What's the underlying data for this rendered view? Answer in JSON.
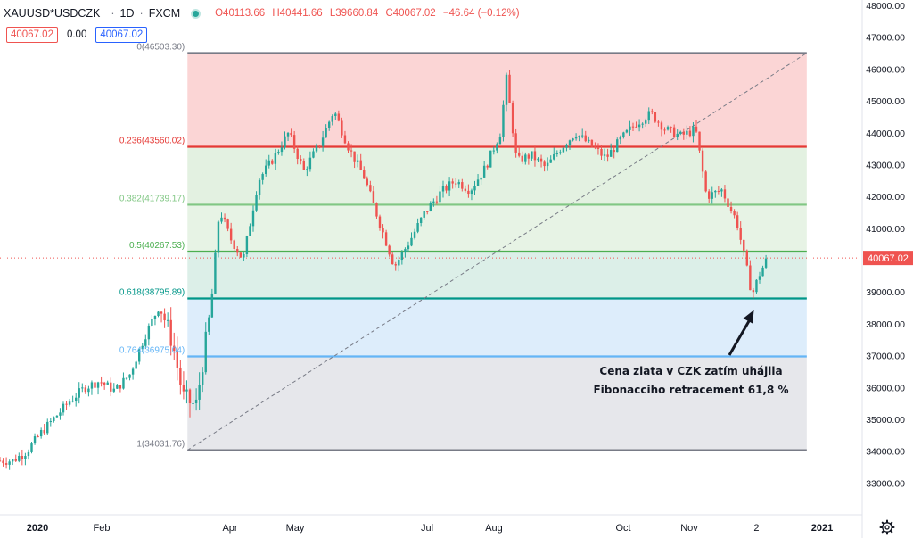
{
  "header": {
    "symbol": "XAUUSD*USDCZK",
    "interval": "1D",
    "source": "FXCM",
    "open": "O40113.66",
    "high": "H40441.66",
    "low": "L39660.84",
    "close": "C40067.02",
    "change": "−46.64 (−0.12%)",
    "bid": "40067.02",
    "spread": "0.00",
    "ask": "40067.02"
  },
  "colors": {
    "up": "#26a69a",
    "down": "#ef5350",
    "fib_0": "#787b86",
    "fib_236": "#e53935",
    "fib_382": "#81c784",
    "fib_5": "#4caf50",
    "fib_618": "#009688",
    "fib_764": "#64b5f6",
    "fib_1": "#787b86",
    "price_tag": "#ef5350"
  },
  "annotation": {
    "line1": "Cena zlata v CZK zatím uhájila",
    "line2": "Fibonacciho retracement 61,8 %"
  },
  "chart_data": {
    "type": "candlestick",
    "ylim": [
      32400,
      48200
    ],
    "y_ticks": [
      "48000.00",
      "47000.00",
      "46000.00",
      "45000.00",
      "44000.00",
      "43000.00",
      "42000.00",
      "41000.00",
      "40000.00",
      "39000.00",
      "38000.00",
      "37000.00",
      "36000.00",
      "35000.00",
      "34000.00",
      "33000.00"
    ],
    "x_ticks": [
      "2020",
      "Feb",
      "Apr",
      "May",
      "Jul",
      "Aug",
      "Oct",
      "Nov",
      "2",
      "2021"
    ],
    "last_price": "40067.02",
    "fib_levels": [
      {
        "ratio": 0,
        "price": 46503.3,
        "label": "0(46503.30)"
      },
      {
        "ratio": 0.236,
        "price": 43560.02,
        "label": "0.236(43560.02)"
      },
      {
        "ratio": 0.382,
        "price": 41739.17,
        "label": "0.382(41739.17)"
      },
      {
        "ratio": 0.5,
        "price": 40267.53,
        "label": "0.5(40267.53)"
      },
      {
        "ratio": 0.618,
        "price": 38795.89,
        "label": "0.618(38795.89)"
      },
      {
        "ratio": 0.764,
        "price": 36975.04,
        "label": "0.764(36975.04)"
      },
      {
        "ratio": 1,
        "price": 34031.76,
        "label": "1(34031.76)"
      }
    ],
    "trend_line": {
      "from_price": 34031.76,
      "to_price": 46503.3
    },
    "arrow_target_price": 38600,
    "series": [
      {
        "values": [
          {
            "t": "2019-12-20",
            "c": 33700
          },
          {
            "t": "2019-12-27",
            "c": 34000
          },
          {
            "t": "2020-01-03",
            "c": 34600
          },
          {
            "t": "2020-01-10",
            "c": 35100
          },
          {
            "t": "2020-01-17",
            "c": 35600
          },
          {
            "t": "2020-01-24",
            "c": 36000
          },
          {
            "t": "2020-01-31",
            "c": 36200
          },
          {
            "t": "2020-02-07",
            "c": 35900
          },
          {
            "t": "2020-02-14",
            "c": 36400
          },
          {
            "t": "2020-02-21",
            "c": 37600
          },
          {
            "t": "2020-02-28",
            "c": 38600
          },
          {
            "t": "2020-03-05",
            "c": 37400
          },
          {
            "t": "2020-03-10",
            "c": 35700
          },
          {
            "t": "2020-03-16",
            "c": 35400
          },
          {
            "t": "2020-03-23",
            "c": 38500
          },
          {
            "t": "2020-03-27",
            "c": 41600
          },
          {
            "t": "2020-04-01",
            "c": 40700
          },
          {
            "t": "2020-04-07",
            "c": 40000
          },
          {
            "t": "2020-04-14",
            "c": 42500
          },
          {
            "t": "2020-04-21",
            "c": 43200
          },
          {
            "t": "2020-04-28",
            "c": 44000
          },
          {
            "t": "2020-05-05",
            "c": 42800
          },
          {
            "t": "2020-05-12",
            "c": 43600
          },
          {
            "t": "2020-05-19",
            "c": 44700
          },
          {
            "t": "2020-05-26",
            "c": 43500
          },
          {
            "t": "2020-06-02",
            "c": 42600
          },
          {
            "t": "2020-06-09",
            "c": 41200
          },
          {
            "t": "2020-06-16",
            "c": 39800
          },
          {
            "t": "2020-06-23",
            "c": 40600
          },
          {
            "t": "2020-06-30",
            "c": 41500
          },
          {
            "t": "2020-07-07",
            "c": 42100
          },
          {
            "t": "2020-07-14",
            "c": 42500
          },
          {
            "t": "2020-07-21",
            "c": 42200
          },
          {
            "t": "2020-07-28",
            "c": 42900
          },
          {
            "t": "2020-08-04",
            "c": 44000
          },
          {
            "t": "2020-08-07",
            "c": 45700
          },
          {
            "t": "2020-08-12",
            "c": 43100
          },
          {
            "t": "2020-08-19",
            "c": 43300
          },
          {
            "t": "2020-08-26",
            "c": 42900
          },
          {
            "t": "2020-09-02",
            "c": 43500
          },
          {
            "t": "2020-09-09",
            "c": 44000
          },
          {
            "t": "2020-09-16",
            "c": 43600
          },
          {
            "t": "2020-09-23",
            "c": 43200
          },
          {
            "t": "2020-09-30",
            "c": 43800
          },
          {
            "t": "2020-10-07",
            "c": 44300
          },
          {
            "t": "2020-10-14",
            "c": 44600
          },
          {
            "t": "2020-10-21",
            "c": 44100
          },
          {
            "t": "2020-10-28",
            "c": 43900
          },
          {
            "t": "2020-11-04",
            "c": 44100
          },
          {
            "t": "2020-11-09",
            "c": 42000
          },
          {
            "t": "2020-11-16",
            "c": 42200
          },
          {
            "t": "2020-11-23",
            "c": 41200
          },
          {
            "t": "2020-11-27",
            "c": 39900
          },
          {
            "t": "2020-11-30",
            "c": 38900
          },
          {
            "t": "2020-12-03",
            "c": 39500
          },
          {
            "t": "2020-12-07",
            "c": 40067
          }
        ]
      }
    ]
  }
}
